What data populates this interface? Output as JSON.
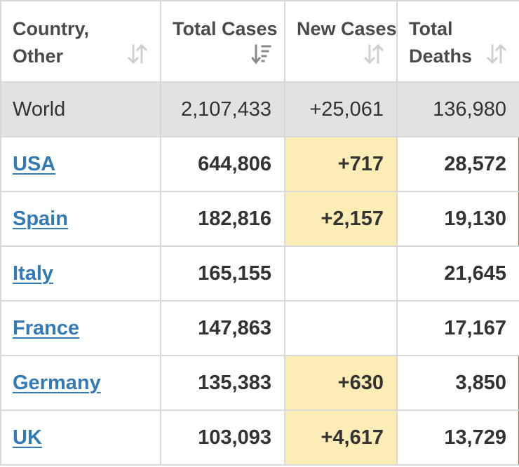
{
  "columns": [
    {
      "label": "Country, Other",
      "sort": "inactive"
    },
    {
      "label": "Total Cases",
      "sort": "active-desc"
    },
    {
      "label": "New Cases",
      "sort": "inactive"
    },
    {
      "label": "Total Deaths",
      "sort": "inactive"
    }
  ],
  "colors": {
    "link": "#337ab7",
    "world_row_bg": "#e2e2e2",
    "new_cases_highlight": "#fcedb6",
    "deaths_marker": "#d9534f"
  },
  "world": {
    "country": "World",
    "total_cases": "2,107,433",
    "new_cases": "+25,061",
    "total_deaths": "136,980"
  },
  "rows": [
    {
      "country": "USA",
      "total_cases": "644,806",
      "new_cases": "+717",
      "total_deaths": "28,572"
    },
    {
      "country": "Spain",
      "total_cases": "182,816",
      "new_cases": "+2,157",
      "total_deaths": "19,130"
    },
    {
      "country": "Italy",
      "total_cases": "165,155",
      "new_cases": "",
      "total_deaths": "21,645"
    },
    {
      "country": "France",
      "total_cases": "147,863",
      "new_cases": "",
      "total_deaths": "17,167"
    },
    {
      "country": "Germany",
      "total_cases": "135,383",
      "new_cases": "+630",
      "total_deaths": "3,850"
    },
    {
      "country": "UK",
      "total_cases": "103,093",
      "new_cases": "+4,617",
      "total_deaths": "13,729"
    }
  ]
}
